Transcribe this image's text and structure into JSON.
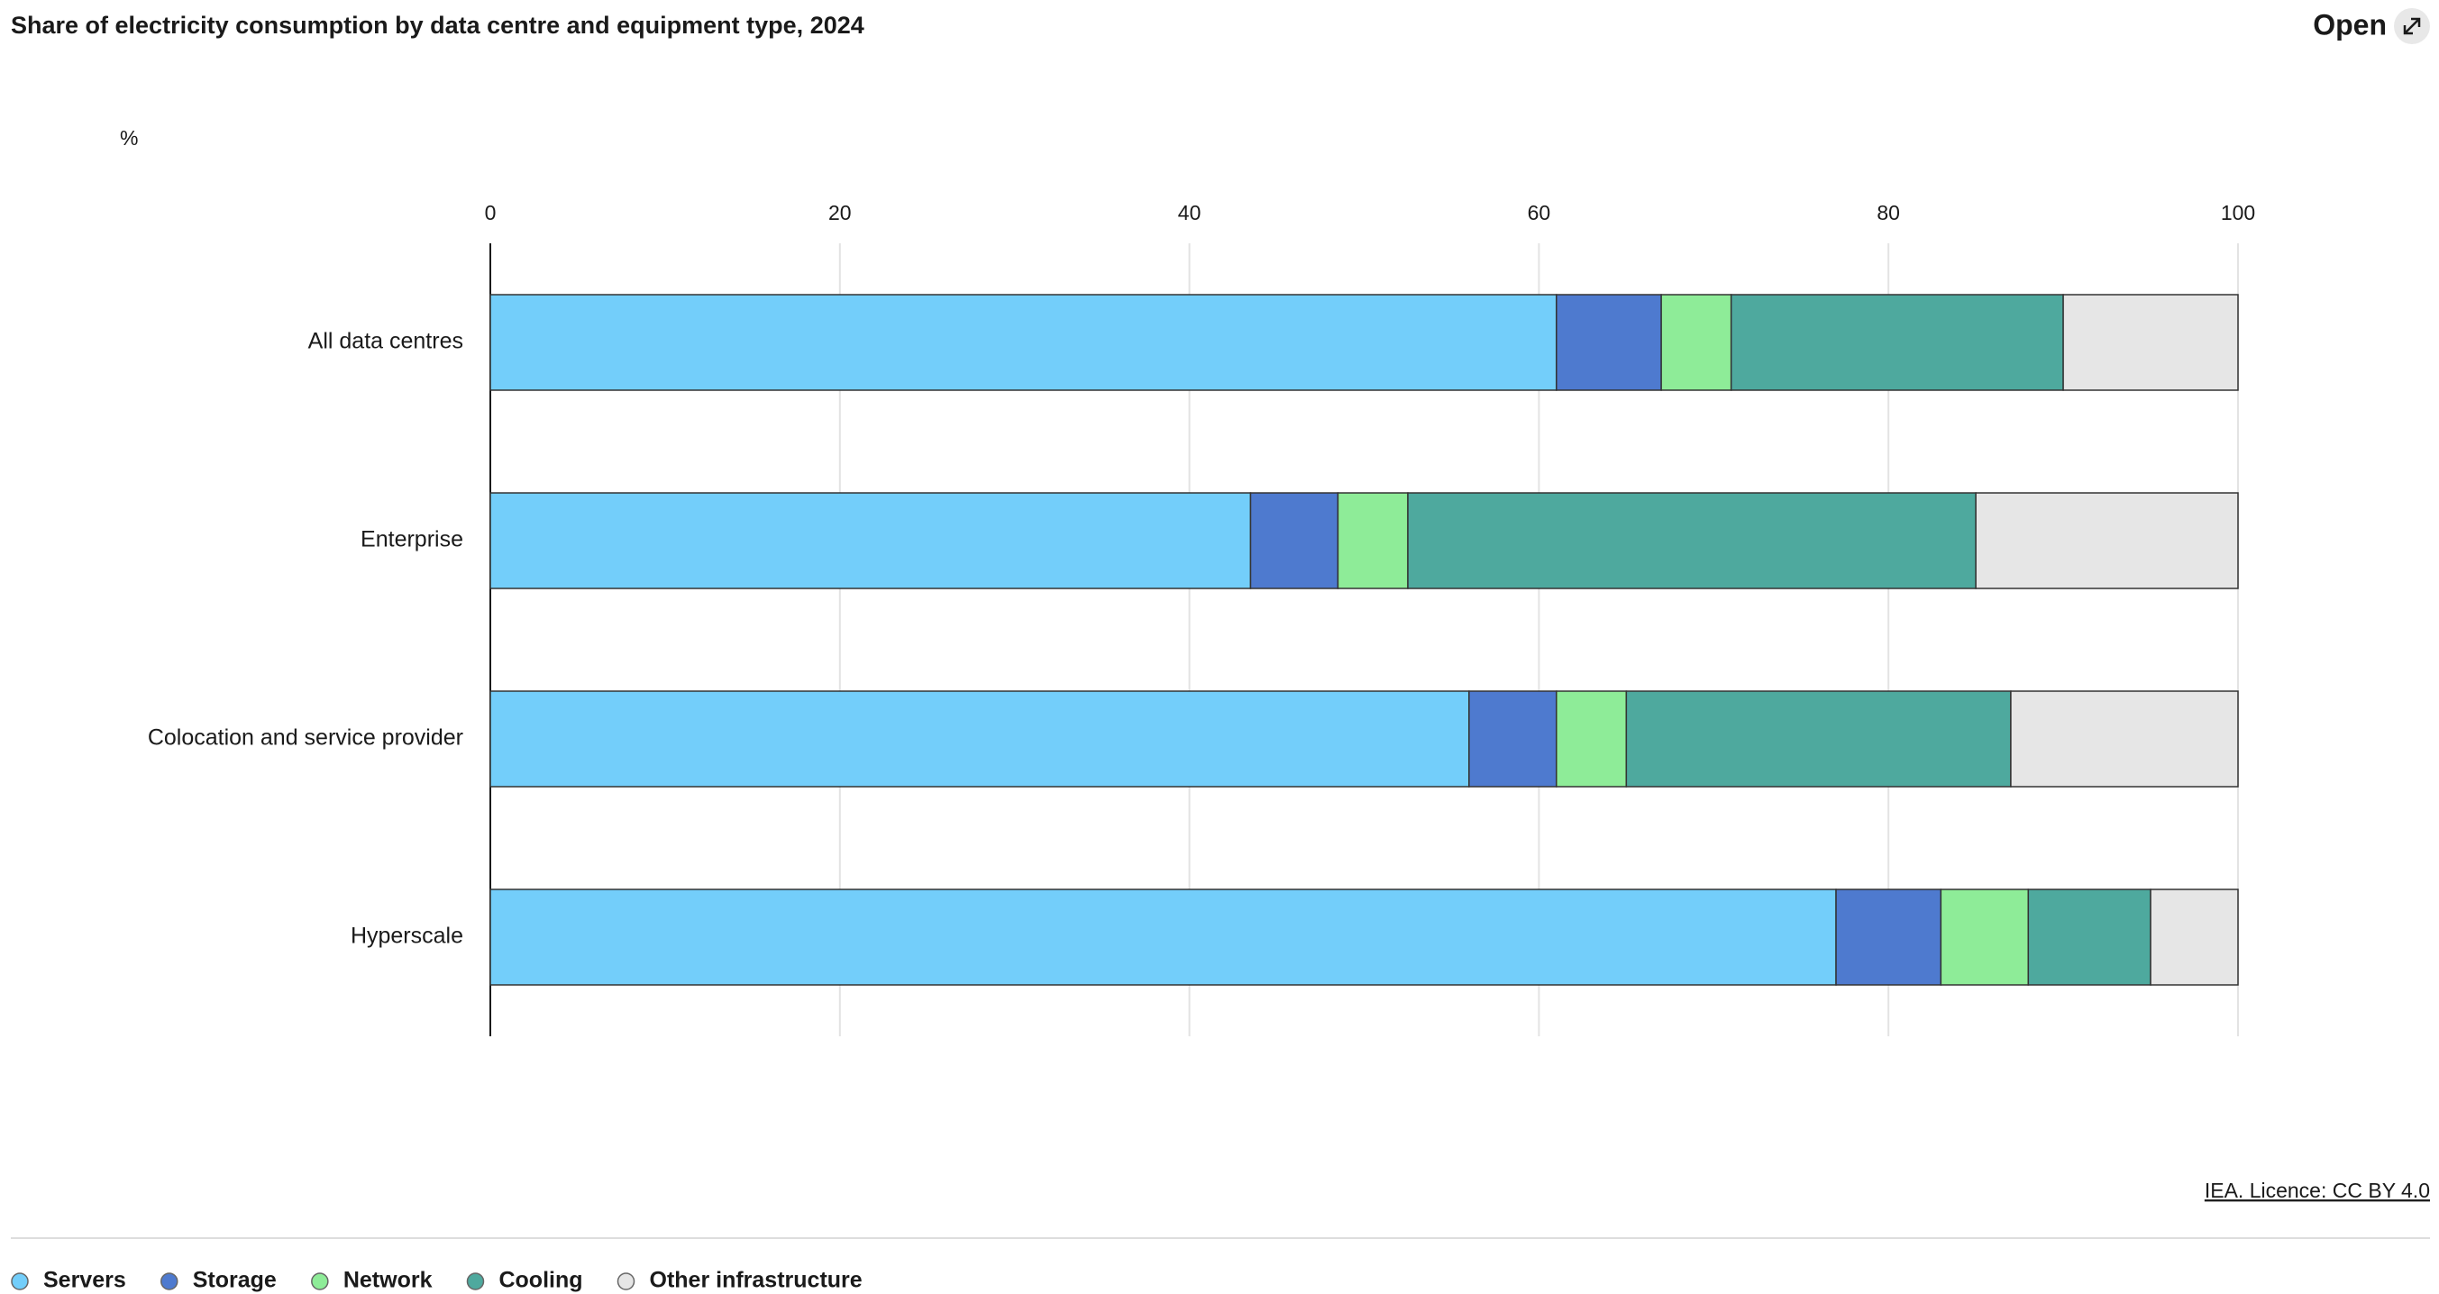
{
  "chart_data": {
    "type": "stacked-barh",
    "title": "Share of electricity consumption by data centre and equipment type, 2024",
    "xlabel": "%",
    "categories": [
      "All data centres",
      "Enterprise",
      "Colocation and service provider",
      "Hyperscale"
    ],
    "series": [
      {
        "name": "Servers",
        "color": "#73cefa",
        "values": [
          61,
          43.5,
          56,
          77
        ]
      },
      {
        "name": "Storage",
        "color": "#4e7acf",
        "values": [
          6,
          5,
          5,
          6
        ]
      },
      {
        "name": "Network",
        "color": "#8eec98",
        "values": [
          4,
          4,
          4,
          5
        ]
      },
      {
        "name": "Cooling",
        "color": "#4ea99e",
        "values": [
          19,
          32.5,
          22,
          7
        ]
      },
      {
        "name": "Other infrastructure",
        "color": "#e6e6e6",
        "values": [
          10,
          15,
          13,
          5
        ]
      }
    ],
    "xlim": [
      0,
      100
    ],
    "xticks": [
      0,
      20,
      40,
      60,
      80,
      100
    ],
    "grid": true,
    "source": "IEA. Licence: CC BY 4.0"
  },
  "header": {
    "open": "Open"
  }
}
